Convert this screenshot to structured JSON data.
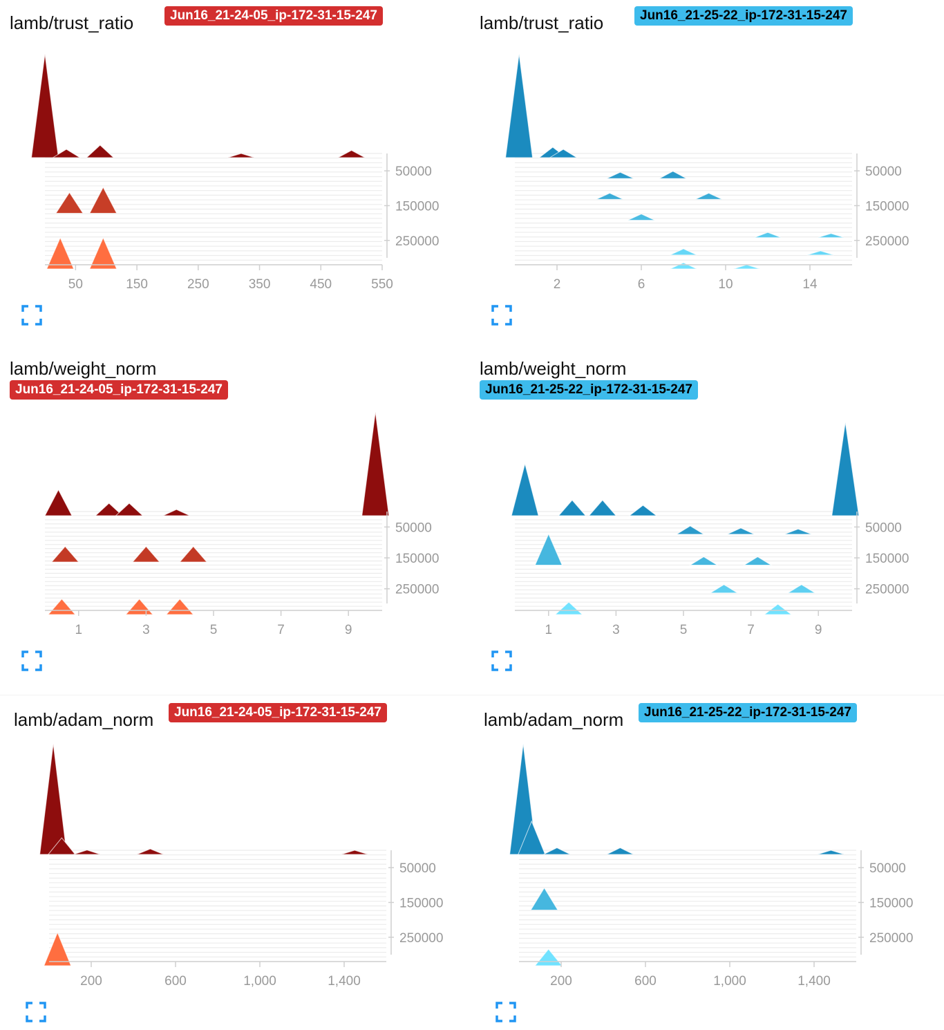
{
  "cards": [
    {
      "title": "lamb/trust_ratio",
      "run": "Jun16_21-24-05_ip-172-31-15-247",
      "theme": "red",
      "badge_color": "#d32f2f",
      "expand_icon": "expand-icon",
      "chart_data": {
        "type": "histogram-offset",
        "metric": "lamb/trust_ratio",
        "x_ticks": [
          50,
          150,
          250,
          350,
          450,
          550
        ],
        "x_range": [
          0,
          550
        ],
        "step_ticks": [
          50000,
          150000,
          250000
        ],
        "step_range": [
          0,
          320000
        ],
        "color_oldest": "#8e0d0d",
        "color_newest": "#ff6e40",
        "peaks": [
          {
            "step": 0,
            "x": 0,
            "value": 1.0
          },
          {
            "step": 0,
            "x": 35,
            "value": 0.08
          },
          {
            "step": 0,
            "x": 90,
            "value": 0.12
          },
          {
            "step": 0,
            "x": 320,
            "value": 0.04
          },
          {
            "step": 0,
            "x": 500,
            "value": 0.07
          },
          {
            "step": 160000,
            "x": 40,
            "value": 0.2
          },
          {
            "step": 160000,
            "x": 95,
            "value": 0.25
          },
          {
            "step": 320000,
            "x": 25,
            "value": 0.3
          },
          {
            "step": 320000,
            "x": 95,
            "value": 0.3
          }
        ]
      }
    },
    {
      "title": "lamb/trust_ratio",
      "run": "Jun16_21-25-22_ip-172-31-15-247",
      "theme": "blue",
      "badge_color": "#3dbbec",
      "expand_icon": "expand-icon",
      "chart_data": {
        "type": "histogram-offset",
        "metric": "lamb/trust_ratio",
        "x_ticks": [
          2,
          6,
          10,
          14
        ],
        "x_range": [
          0,
          16
        ],
        "step_ticks": [
          50000,
          150000,
          250000
        ],
        "step_range": [
          0,
          320000
        ],
        "color_oldest": "#1b8bbf",
        "color_newest": "#71e2ff",
        "peaks": [
          {
            "step": 0,
            "x": 0.2,
            "value": 1.0
          },
          {
            "step": 0,
            "x": 1.8,
            "value": 0.1
          },
          {
            "step": 0,
            "x": 2.3,
            "value": 0.08
          },
          {
            "step": 60000,
            "x": 5,
            "value": 0.06
          },
          {
            "step": 60000,
            "x": 7.5,
            "value": 0.07
          },
          {
            "step": 120000,
            "x": 4.5,
            "value": 0.06
          },
          {
            "step": 120000,
            "x": 9.2,
            "value": 0.06
          },
          {
            "step": 180000,
            "x": 6,
            "value": 0.06
          },
          {
            "step": 230000,
            "x": 12,
            "value": 0.05
          },
          {
            "step": 230000,
            "x": 15,
            "value": 0.04
          },
          {
            "step": 280000,
            "x": 8,
            "value": 0.06
          },
          {
            "step": 280000,
            "x": 14.5,
            "value": 0.04
          },
          {
            "step": 320000,
            "x": 8,
            "value": 0.06
          },
          {
            "step": 320000,
            "x": 11,
            "value": 0.03
          }
        ]
      }
    },
    {
      "title": "lamb/weight_norm",
      "run": "Jun16_21-24-05_ip-172-31-15-247",
      "theme": "red",
      "badge_color": "#d32f2f",
      "expand_icon": "expand-icon",
      "chart_data": {
        "type": "histogram-offset",
        "metric": "lamb/weight_norm",
        "x_ticks": [
          1,
          3,
          5,
          7,
          9
        ],
        "x_range": [
          0,
          10
        ],
        "step_ticks": [
          50000,
          150000,
          250000
        ],
        "step_range": [
          0,
          320000
        ],
        "color_oldest": "#8e0d0d",
        "color_newest": "#ff6e40",
        "peaks": [
          {
            "step": 0,
            "x": 0.4,
            "value": 0.25
          },
          {
            "step": 0,
            "x": 1.9,
            "value": 0.12
          },
          {
            "step": 0,
            "x": 2.5,
            "value": 0.12
          },
          {
            "step": 0,
            "x": 3.9,
            "value": 0.06
          },
          {
            "step": 0,
            "x": 9.8,
            "value": 1.0
          },
          {
            "step": 150000,
            "x": 0.6,
            "value": 0.15
          },
          {
            "step": 150000,
            "x": 3.0,
            "value": 0.15
          },
          {
            "step": 150000,
            "x": 4.4,
            "value": 0.15
          },
          {
            "step": 320000,
            "x": 0.5,
            "value": 0.15
          },
          {
            "step": 320000,
            "x": 2.8,
            "value": 0.15
          },
          {
            "step": 320000,
            "x": 4.0,
            "value": 0.15
          }
        ]
      }
    },
    {
      "title": "lamb/weight_norm",
      "run": "Jun16_21-25-22_ip-172-31-15-247",
      "theme": "blue",
      "badge_color": "#3dbbec",
      "expand_icon": "expand-icon",
      "chart_data": {
        "type": "histogram-offset",
        "metric": "lamb/weight_norm",
        "x_ticks": [
          1,
          3,
          5,
          7,
          9
        ],
        "x_range": [
          0,
          10
        ],
        "step_ticks": [
          50000,
          150000,
          250000
        ],
        "step_range": [
          0,
          320000
        ],
        "color_oldest": "#1b8bbf",
        "color_newest": "#71e2ff",
        "peaks": [
          {
            "step": 0,
            "x": 0.3,
            "value": 0.5
          },
          {
            "step": 0,
            "x": 1.7,
            "value": 0.15
          },
          {
            "step": 0,
            "x": 2.6,
            "value": 0.15
          },
          {
            "step": 0,
            "x": 3.8,
            "value": 0.1
          },
          {
            "step": 0,
            "x": 9.8,
            "value": 0.9
          },
          {
            "step": 60000,
            "x": 5.2,
            "value": 0.08
          },
          {
            "step": 60000,
            "x": 6.7,
            "value": 0.06
          },
          {
            "step": 60000,
            "x": 8.4,
            "value": 0.05
          },
          {
            "step": 160000,
            "x": 1.0,
            "value": 0.3
          },
          {
            "step": 160000,
            "x": 5.6,
            "value": 0.08
          },
          {
            "step": 160000,
            "x": 7.2,
            "value": 0.08
          },
          {
            "step": 250000,
            "x": 6.2,
            "value": 0.08
          },
          {
            "step": 250000,
            "x": 8.5,
            "value": 0.08
          },
          {
            "step": 320000,
            "x": 1.6,
            "value": 0.12
          },
          {
            "step": 320000,
            "x": 7.8,
            "value": 0.1
          }
        ]
      }
    },
    {
      "title": "lamb/adam_norm",
      "run": "Jun16_21-24-05_ip-172-31-15-247",
      "theme": "red",
      "badge_color": "#d32f2f",
      "expand_icon": "expand-icon",
      "chart_data": {
        "type": "histogram-offset",
        "metric": "lamb/adam_norm",
        "x_ticks": [
          200,
          600,
          1000,
          1400
        ],
        "x_tick_labels": [
          "200",
          "600",
          "1,000",
          "1,400"
        ],
        "x_range": [
          0,
          1600
        ],
        "step_ticks": [
          50000,
          150000,
          250000
        ],
        "step_range": [
          0,
          320000
        ],
        "color_oldest": "#8e0d0d",
        "color_newest": "#ff6e40",
        "peaks": [
          {
            "step": 0,
            "x": 20,
            "value": 1.0
          },
          {
            "step": 0,
            "x": 60,
            "value": 0.15
          },
          {
            "step": 0,
            "x": 180,
            "value": 0.04
          },
          {
            "step": 0,
            "x": 480,
            "value": 0.05
          },
          {
            "step": 0,
            "x": 1450,
            "value": 0.03
          },
          {
            "step": 320000,
            "x": 40,
            "value": 0.3
          }
        ]
      }
    },
    {
      "title": "lamb/adam_norm",
      "run": "Jun16_21-25-22_ip-172-31-15-247",
      "theme": "blue",
      "badge_color": "#3dbbec",
      "expand_icon": "expand-icon",
      "chart_data": {
        "type": "histogram-offset",
        "metric": "lamb/adam_norm",
        "x_ticks": [
          200,
          600,
          1000,
          1400
        ],
        "x_tick_labels": [
          "200",
          "600",
          "1,000",
          "1,400"
        ],
        "x_range": [
          0,
          1600
        ],
        "step_ticks": [
          50000,
          150000,
          250000
        ],
        "step_range": [
          0,
          320000
        ],
        "color_oldest": "#1b8bbf",
        "color_newest": "#71e2ff",
        "peaks": [
          {
            "step": 0,
            "x": 20,
            "value": 1.0
          },
          {
            "step": 0,
            "x": 60,
            "value": 0.3
          },
          {
            "step": 0,
            "x": 180,
            "value": 0.06
          },
          {
            "step": 0,
            "x": 480,
            "value": 0.06
          },
          {
            "step": 0,
            "x": 1480,
            "value": 0.03
          },
          {
            "step": 160000,
            "x": 120,
            "value": 0.2
          },
          {
            "step": 320000,
            "x": 140,
            "value": 0.15
          }
        ]
      }
    }
  ]
}
